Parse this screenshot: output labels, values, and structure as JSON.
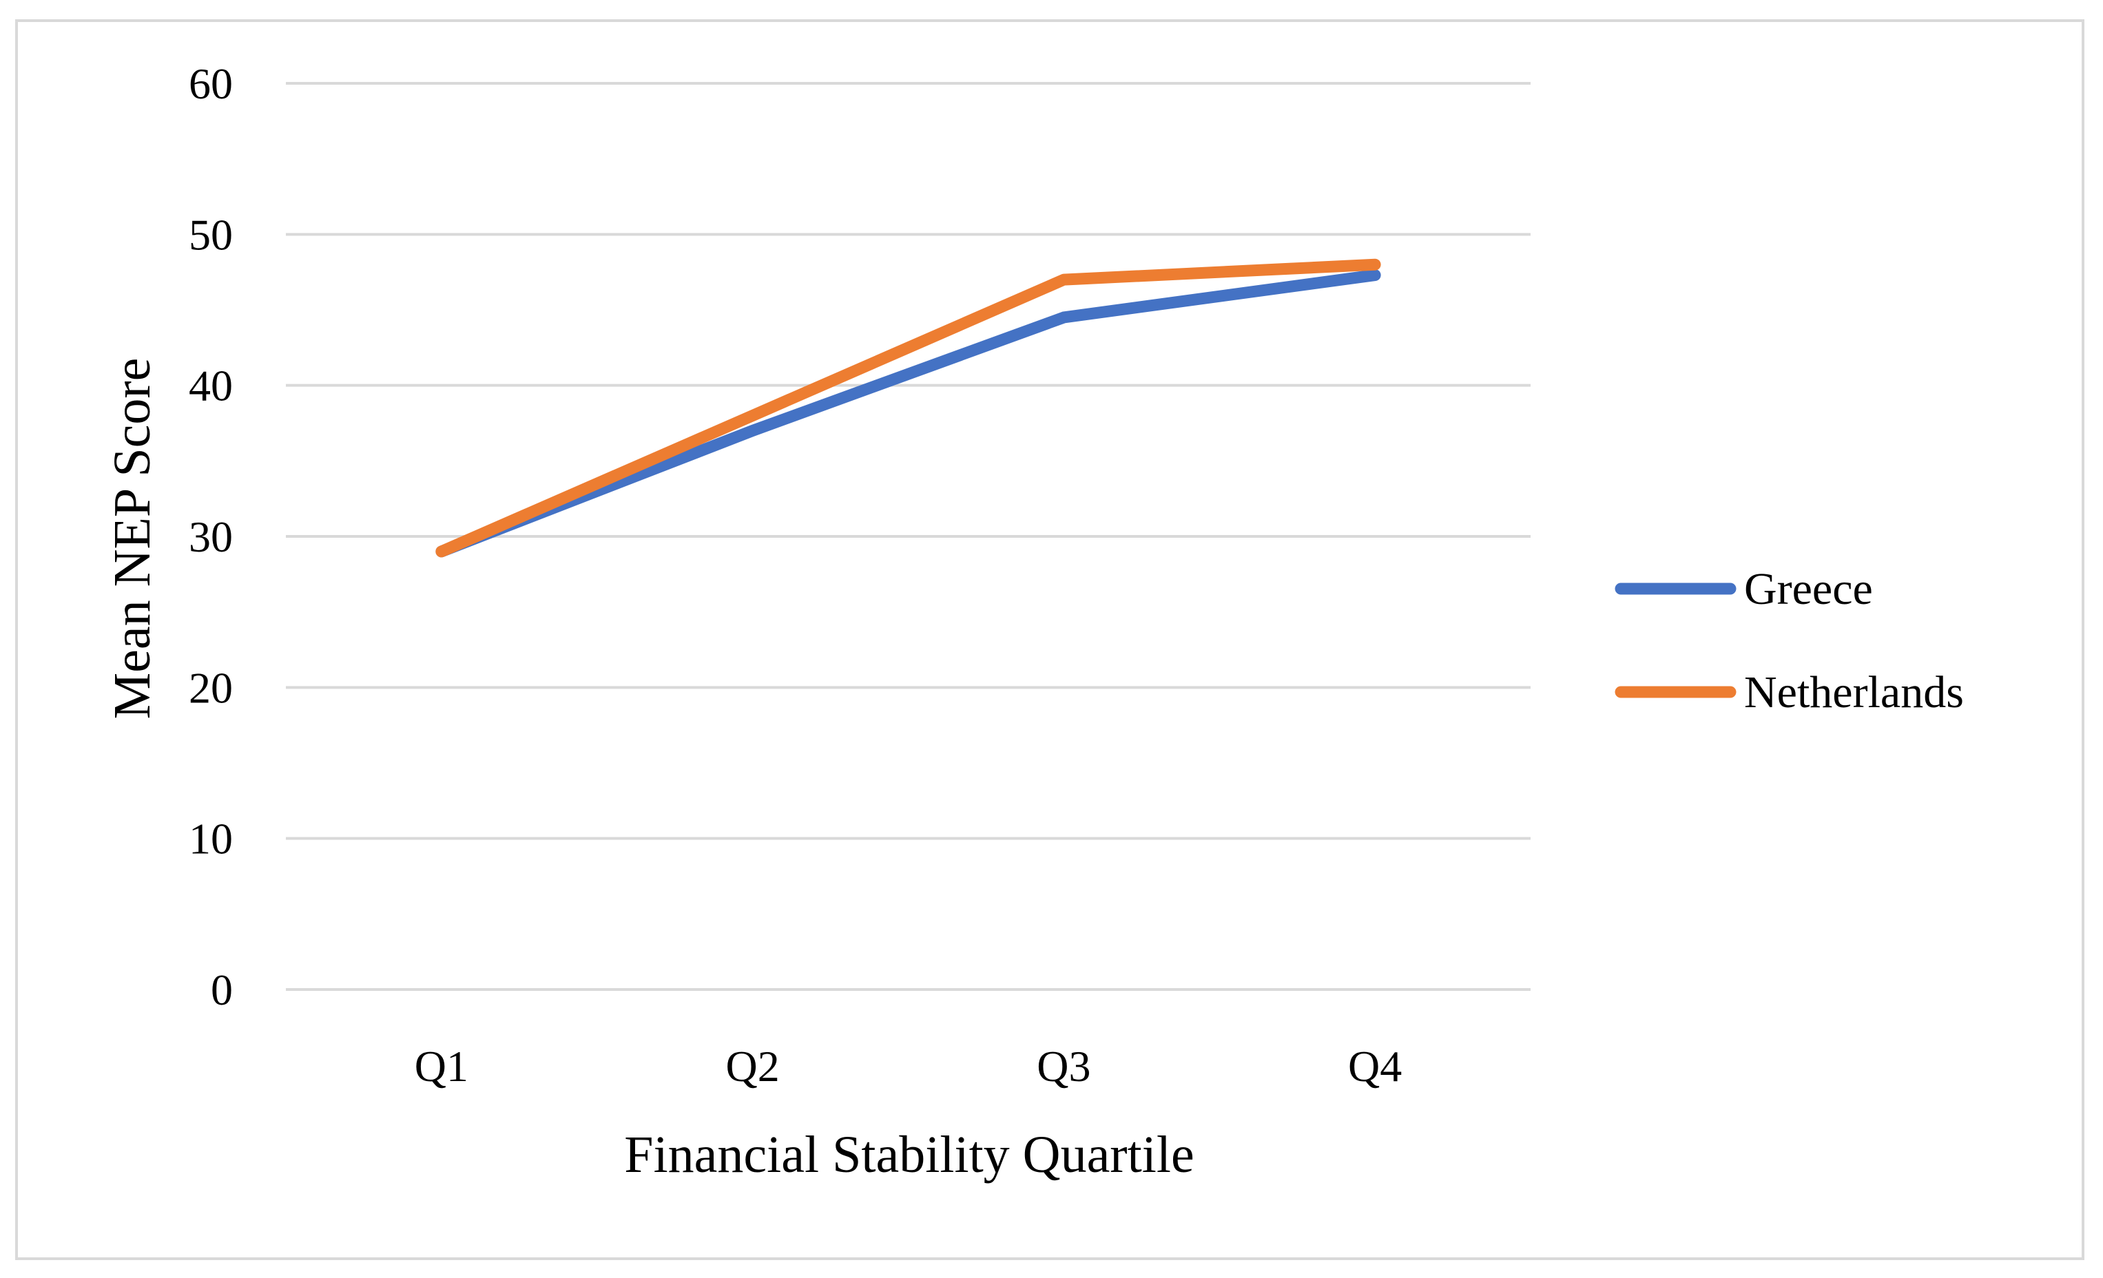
{
  "chart_data": {
    "type": "line",
    "title": "",
    "xlabel": "Financial Stability Quartile",
    "ylabel": "Mean NEP Score",
    "categories": [
      "Q1",
      "Q2",
      "Q3",
      "Q4"
    ],
    "ylim": [
      0,
      60
    ],
    "yticks": [
      0,
      10,
      20,
      30,
      40,
      50,
      60
    ],
    "grid": true,
    "legend_position": "right",
    "series": [
      {
        "name": "Greece",
        "color": "#4472c4",
        "values": [
          29.0,
          37.0,
          44.5,
          47.3
        ]
      },
      {
        "name": "Netherlands",
        "color": "#ed7d31",
        "values": [
          29.0,
          38.0,
          47.0,
          48.0
        ]
      }
    ]
  }
}
